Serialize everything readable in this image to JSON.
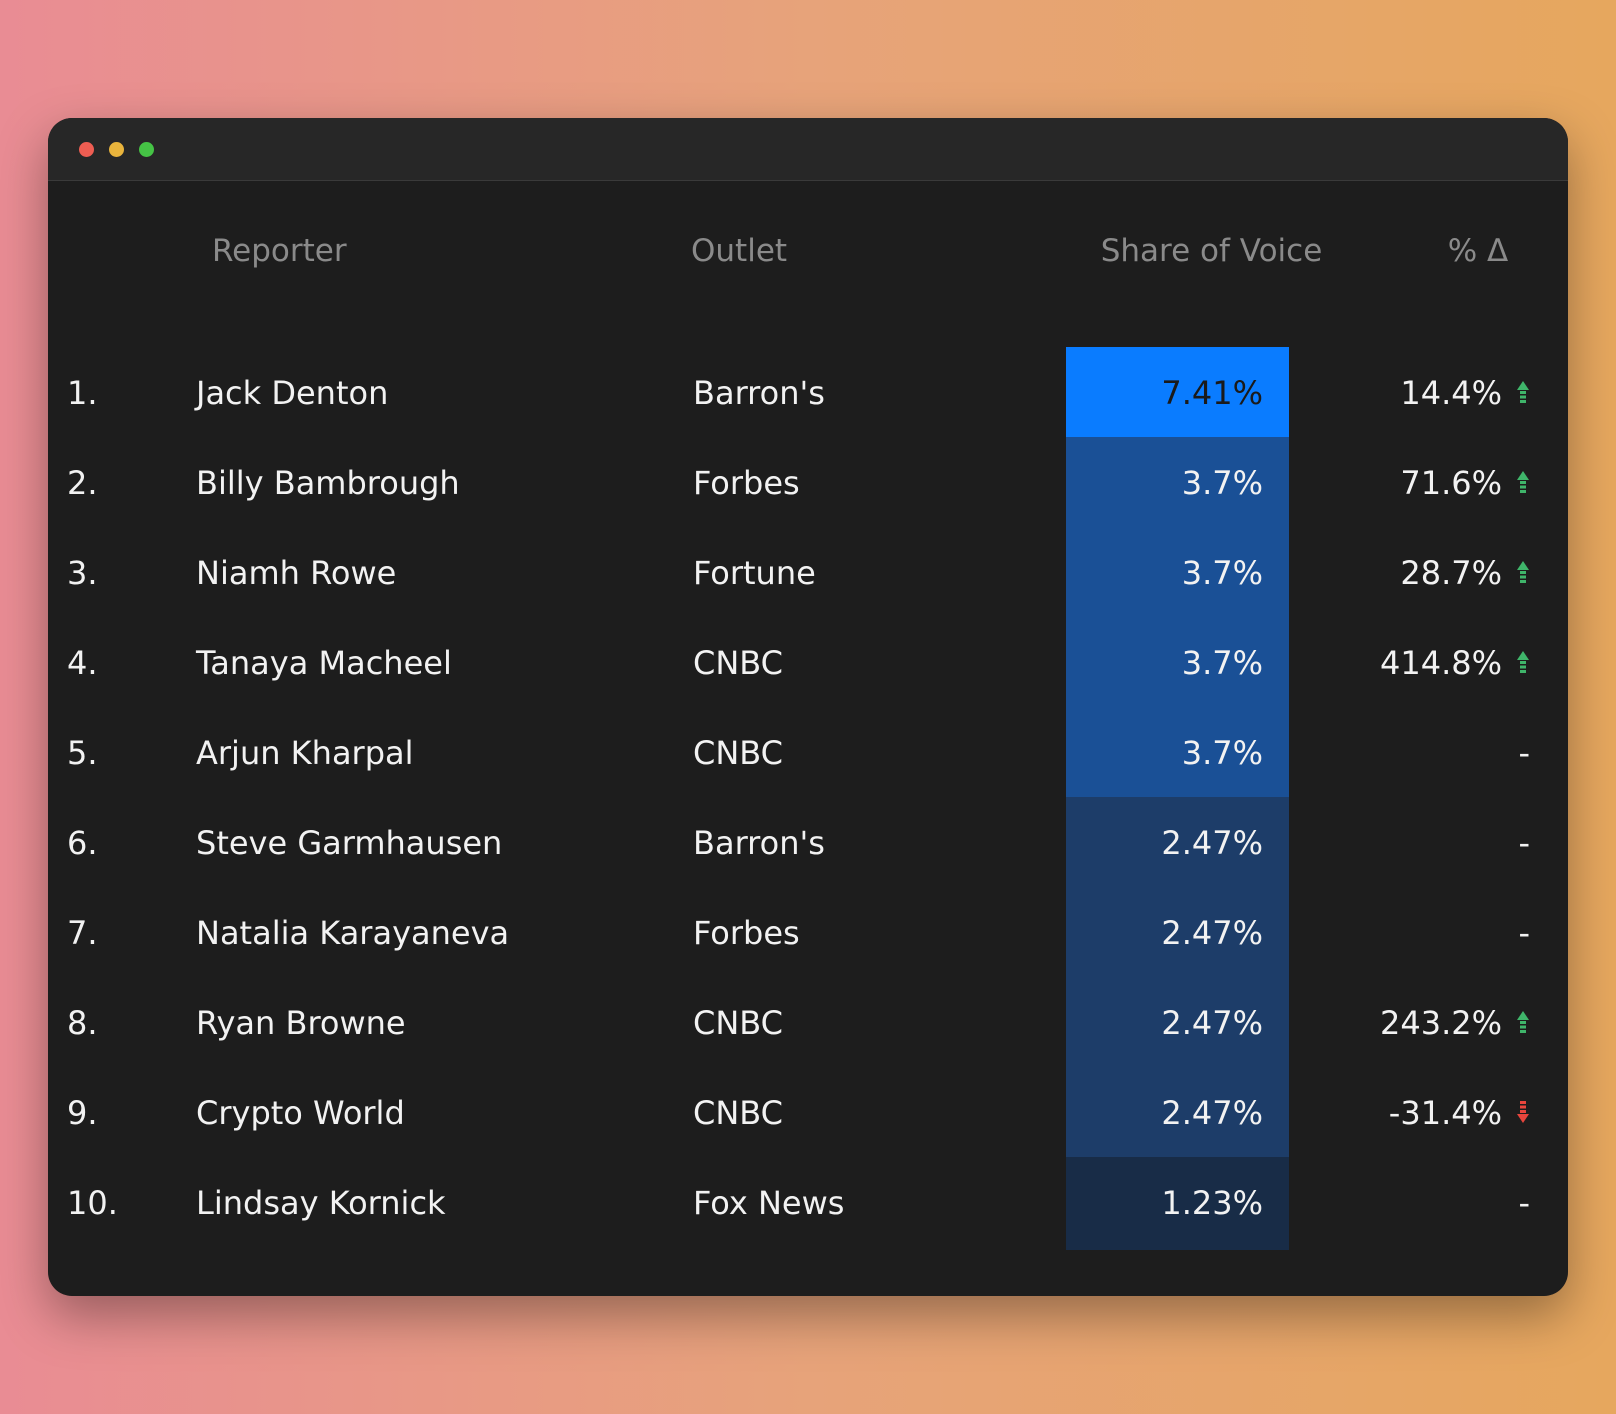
{
  "window": {
    "controls": [
      "close",
      "minimize",
      "maximize"
    ]
  },
  "headers": {
    "reporter": "Reporter",
    "outlet": "Outlet",
    "share_of_voice": "Share of Voice",
    "delta": "% Δ"
  },
  "colors": {
    "sov_high": "#0a7cff",
    "sov_mid": "#1a5096",
    "sov_low": "#1d3d69",
    "sov_lowest": "#182c47",
    "arrow_up": "#3fb56a",
    "arrow_down": "#e8453c"
  },
  "rows": [
    {
      "rank": "1.",
      "reporter": "Jack Denton",
      "outlet": "Barron's",
      "sov": "7.41%",
      "delta": "14.4%",
      "trend": "up",
      "tier": "sov_high"
    },
    {
      "rank": "2.",
      "reporter": "Billy Bambrough",
      "outlet": "Forbes",
      "sov": "3.7%",
      "delta": "71.6%",
      "trend": "up",
      "tier": "sov_mid"
    },
    {
      "rank": "3.",
      "reporter": "Niamh Rowe",
      "outlet": "Fortune",
      "sov": "3.7%",
      "delta": "28.7%",
      "trend": "up",
      "tier": "sov_mid"
    },
    {
      "rank": "4.",
      "reporter": "Tanaya Macheel",
      "outlet": "CNBC",
      "sov": "3.7%",
      "delta": "414.8%",
      "trend": "up",
      "tier": "sov_mid"
    },
    {
      "rank": "5.",
      "reporter": "Arjun Kharpal",
      "outlet": "CNBC",
      "sov": "3.7%",
      "delta": "-",
      "trend": "none",
      "tier": "sov_mid"
    },
    {
      "rank": "6.",
      "reporter": "Steve Garmhausen",
      "outlet": "Barron's",
      "sov": "2.47%",
      "delta": "-",
      "trend": "none",
      "tier": "sov_low"
    },
    {
      "rank": "7.",
      "reporter": "Natalia Karayaneva",
      "outlet": "Forbes",
      "sov": "2.47%",
      "delta": "-",
      "trend": "none",
      "tier": "sov_low"
    },
    {
      "rank": "8.",
      "reporter": "Ryan Browne",
      "outlet": "CNBC",
      "sov": "2.47%",
      "delta": "243.2%",
      "trend": "up",
      "tier": "sov_low"
    },
    {
      "rank": "9.",
      "reporter": "Crypto World",
      "outlet": "CNBC",
      "sov": "2.47%",
      "delta": "-31.4%",
      "trend": "down",
      "tier": "sov_low"
    },
    {
      "rank": "10.",
      "reporter": "Lindsay Kornick",
      "outlet": "Fox News",
      "sov": "1.23%",
      "delta": "-",
      "trend": "none",
      "tier": "sov_lowest"
    }
  ]
}
